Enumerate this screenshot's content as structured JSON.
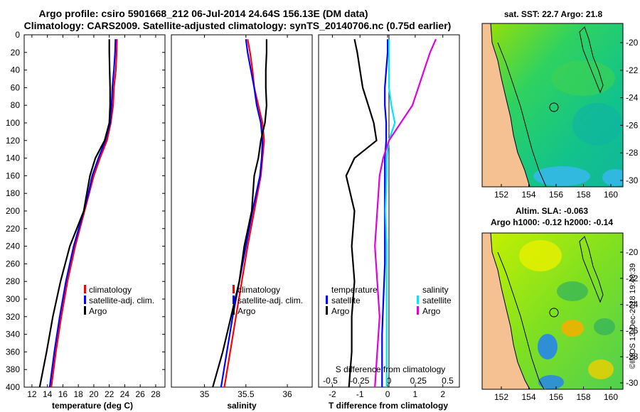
{
  "title": {
    "line1": "Argo profile: csiro 5901668_212 06-Jul-2014 24.64S 156.13E (DM data)",
    "line2": "Climatology: CARS2009. Satellite-adjusted climatology: synTS_20140706.nc (0.75d earlier)"
  },
  "colors": {
    "climatology": "#ff0000",
    "satellite": "#0000ff",
    "argo": "#000000",
    "t_satellite": "#0000ff",
    "s_satellite": "#00e5ff",
    "s_argo": "#e000e0",
    "land": "#f5c193"
  },
  "chart_data": [
    {
      "type": "line",
      "name": "temperature",
      "xlabel": "temperature (deg C)",
      "ylabel": "depth",
      "xlim": [
        11,
        29.2
      ],
      "ylim": [
        0,
        400
      ],
      "xticks": [
        "12",
        "14",
        "16",
        "18",
        "20",
        "22",
        "24",
        "26",
        "28"
      ],
      "yticks": [
        "0",
        "20",
        "40",
        "60",
        "80",
        "100",
        "120",
        "140",
        "160",
        "180",
        "200",
        "220",
        "240",
        "260",
        "280",
        "300",
        "320",
        "340",
        "360",
        "380",
        "400"
      ],
      "legend": {
        "position": "bottom-right",
        "entries": [
          "climatology",
          "satellite-adj. clim.",
          "Argo"
        ]
      },
      "series": [
        {
          "name": "climatology",
          "depth": [
            5,
            20,
            40,
            60,
            80,
            100,
            120,
            140,
            160,
            180,
            200,
            240,
            280,
            320,
            360,
            400
          ],
          "values": [
            23.0,
            22.95,
            22.85,
            22.6,
            22.5,
            22.2,
            21.7,
            20.8,
            20.0,
            19.4,
            18.8,
            17.6,
            16.6,
            15.8,
            15.1,
            14.5
          ]
        },
        {
          "name": "satellite-adj. clim.",
          "depth": [
            5,
            20,
            40,
            60,
            80,
            100,
            120,
            140,
            160,
            180,
            200,
            240,
            280,
            320,
            360,
            400
          ],
          "values": [
            22.8,
            22.75,
            22.6,
            22.4,
            22.3,
            22.1,
            21.5,
            20.6,
            19.8,
            19.3,
            18.7,
            17.4,
            16.4,
            15.6,
            14.9,
            14.3
          ]
        },
        {
          "name": "Argo",
          "depth": [
            5,
            20,
            40,
            60,
            80,
            100,
            120,
            140,
            160,
            180,
            200,
            240,
            280,
            320,
            360,
            400
          ],
          "values": [
            22.0,
            22.0,
            22.05,
            22.1,
            22.1,
            22.0,
            21.4,
            20.2,
            19.5,
            19.1,
            18.7,
            16.9,
            15.7,
            14.7,
            13.9,
            13.0
          ]
        }
      ]
    },
    {
      "type": "line",
      "name": "salinity",
      "xlabel": "salinity",
      "ylabel": "depth",
      "xlim": [
        34.6,
        36.3
      ],
      "ylim": [
        0,
        400
      ],
      "xticks": [
        "35",
        "35.5",
        "36"
      ],
      "legend": {
        "position": "bottom-right",
        "entries": [
          "climatology",
          "satellite-adj. clim.",
          "Argo"
        ]
      },
      "series": [
        {
          "name": "climatology",
          "depth": [
            5,
            20,
            40,
            60,
            80,
            100,
            120,
            140,
            160,
            200,
            240,
            280,
            320,
            360,
            400
          ],
          "values": [
            35.52,
            35.55,
            35.58,
            35.6,
            35.65,
            35.7,
            35.72,
            35.7,
            35.68,
            35.6,
            35.52,
            35.45,
            35.38,
            35.31,
            35.24
          ]
        },
        {
          "name": "satellite-adj. clim.",
          "depth": [
            5,
            20,
            40,
            60,
            80,
            100,
            120,
            140,
            160,
            200,
            240,
            280,
            320,
            360,
            400
          ],
          "values": [
            35.5,
            35.52,
            35.56,
            35.6,
            35.63,
            35.68,
            35.7,
            35.69,
            35.67,
            35.58,
            35.5,
            35.42,
            35.34,
            35.27,
            35.2
          ]
        },
        {
          "name": "Argo",
          "depth": [
            5,
            20,
            40,
            60,
            80,
            100,
            120,
            140,
            160,
            200,
            240,
            280,
            320,
            360,
            400
          ],
          "values": [
            35.75,
            35.75,
            35.74,
            35.74,
            35.75,
            35.73,
            35.68,
            35.65,
            35.6,
            35.57,
            35.48,
            35.42,
            35.32,
            35.22,
            35.1
          ]
        }
      ]
    },
    {
      "type": "line",
      "name": "difference",
      "xlabel": "T difference from climatology",
      "xlabel_top": "S difference from climatology",
      "ylabel": "depth",
      "xlim": [
        -2.5,
        2.6
      ],
      "ylim": [
        0,
        400
      ],
      "xticks": [
        "-2",
        "-1",
        "0",
        "1",
        "2"
      ],
      "sticks": [
        "-0.5",
        "-0.25",
        "0",
        "0.25",
        "0.5"
      ],
      "legend_temperature": {
        "title": "temperature",
        "entries": [
          "satellite",
          "Argo"
        ]
      },
      "legend_salinity": {
        "title": "salinity",
        "entries": [
          "satellite",
          "Argo"
        ]
      },
      "series": [
        {
          "name": "T satellite",
          "depth": [
            5,
            20,
            40,
            60,
            80,
            100,
            120,
            140,
            200,
            260,
            300,
            340,
            400
          ],
          "values": [
            0.0,
            0.0,
            -0.05,
            -0.1,
            -0.1,
            -0.05,
            -0.05,
            -0.1,
            -0.1,
            -0.1,
            -0.15,
            -0.2,
            -0.2
          ]
        },
        {
          "name": "T Argo",
          "depth": [
            5,
            20,
            40,
            60,
            80,
            100,
            120,
            140,
            160,
            200,
            240,
            280,
            320,
            360,
            400
          ],
          "values": [
            -1.2,
            -1.1,
            -1.0,
            -0.9,
            -0.7,
            -0.5,
            -0.4,
            -1.2,
            -1.5,
            -1.2,
            -1.3,
            -1.2,
            -1.3,
            -1.3,
            -1.4
          ]
        },
        {
          "name": "S satellite",
          "depth": [
            5,
            20,
            40,
            60,
            80,
            100,
            120,
            140,
            160,
            200,
            240,
            280,
            320,
            360,
            400
          ],
          "values": [
            0.0,
            0.0,
            0.0,
            0.0,
            0.02,
            0.05,
            0.0,
            -0.02,
            -0.02,
            -0.03,
            -0.02,
            -0.02,
            -0.02,
            -0.02,
            -0.02
          ]
        },
        {
          "name": "S Argo",
          "depth": [
            5,
            20,
            40,
            60,
            80,
            100,
            120,
            140,
            160,
            200,
            240,
            280,
            320,
            360,
            400
          ],
          "values": [
            0.4,
            0.35,
            0.3,
            0.25,
            0.2,
            0.1,
            0.0,
            -0.05,
            -0.08,
            -0.1,
            -0.12,
            -0.1,
            -0.08,
            -0.1,
            -0.12
          ]
        }
      ]
    }
  ],
  "maps": {
    "sst": {
      "title": "sat. SST: 22.7 Argo: 21.8",
      "xticks": [
        "152",
        "154",
        "156",
        "158",
        "160"
      ],
      "yticks": [
        "-20",
        "-22",
        "-24",
        "-26",
        "-28",
        "-30"
      ]
    },
    "sla": {
      "title1": "Altim. SLA: -0.063",
      "title2": "Argo h1000: -0.12 h2000: -0.14",
      "xticks": [
        "152",
        "154",
        "156",
        "158",
        "160"
      ],
      "yticks": [
        "-20",
        "-22",
        "-24",
        "-26",
        "-28",
        "-30"
      ]
    }
  },
  "stamp": "©IMOS 13-Dec-2018 19:40:39"
}
